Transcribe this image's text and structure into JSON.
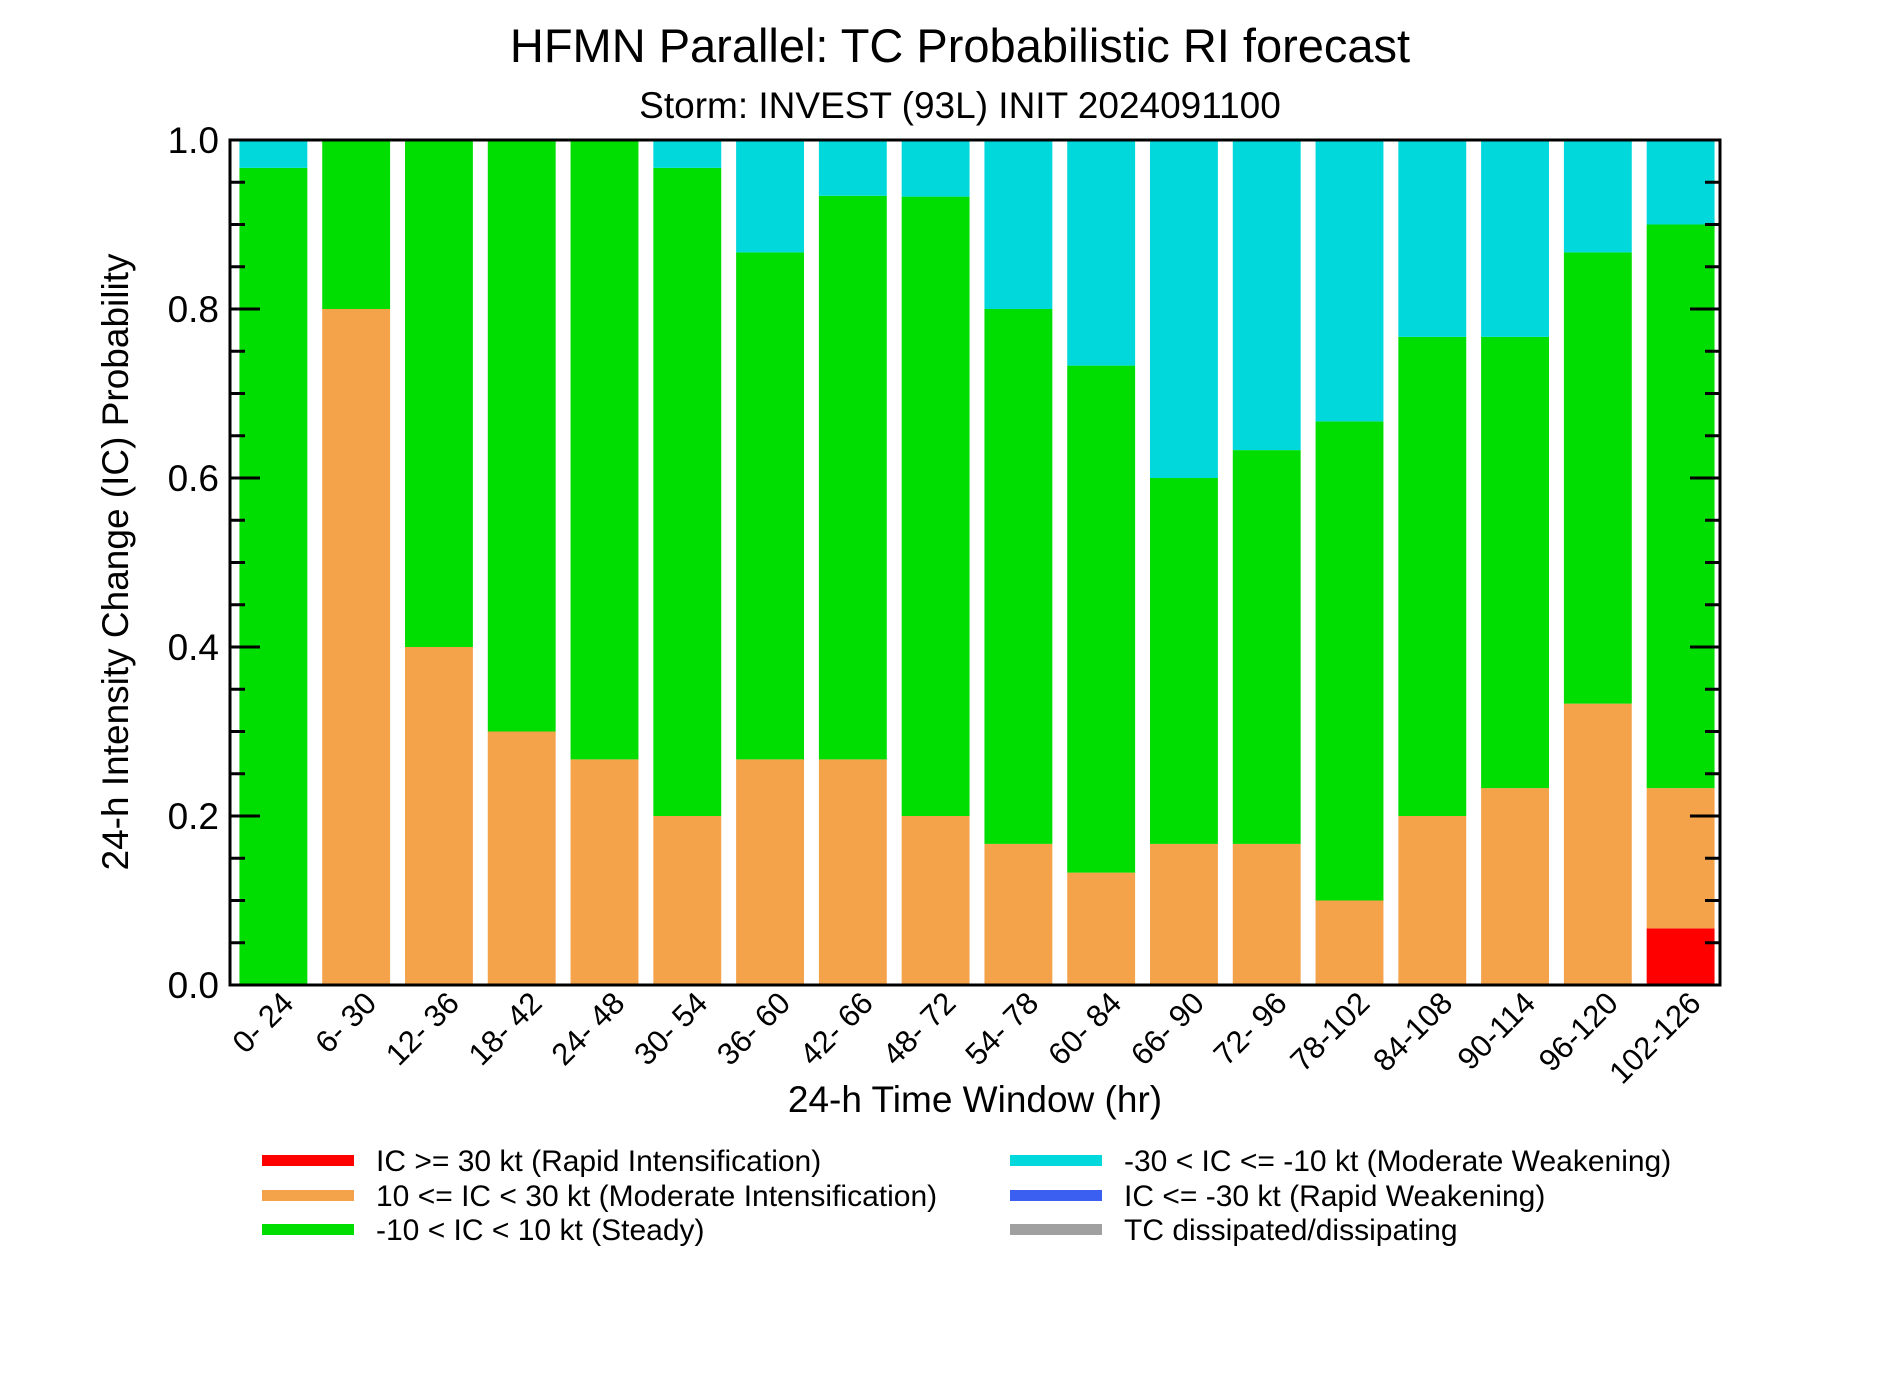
{
  "chart_data": {
    "type": "bar",
    "stacked": true,
    "title": "HFMN Parallel: TC Probabilistic RI forecast",
    "subtitle": "Storm: INVEST (93L) INIT 2024091100",
    "xlabel": "24-h Time Window (hr)",
    "ylabel": "24-h Intensity Change (IC) Probability",
    "ylim": [
      0,
      1
    ],
    "yticks": [
      "0.0",
      "0.2",
      "0.4",
      "0.6",
      "0.8",
      "1.0"
    ],
    "categories": [
      "0- 24",
      "6- 30",
      "12- 36",
      "18- 42",
      "24- 48",
      "30- 54",
      "36- 60",
      "42- 66",
      "48- 72",
      "54- 78",
      "60- 84",
      "66- 90",
      "72- 96",
      "78-102",
      "84-108",
      "90-114",
      "96-120",
      "102-126"
    ],
    "grid": false,
    "legend_position": "bottom",
    "series": [
      {
        "name": "IC >= 30 kt (Rapid Intensification)",
        "color": "#ff0000",
        "values": [
          0,
          0,
          0,
          0,
          0,
          0,
          0,
          0,
          0,
          0,
          0,
          0,
          0,
          0,
          0,
          0,
          0,
          0.067
        ]
      },
      {
        "name": "10 <= IC < 30 kt (Moderate Intensification)",
        "color": "#f4a34b",
        "values": [
          0,
          0.8,
          0.4,
          0.3,
          0.267,
          0.2,
          0.267,
          0.267,
          0.2,
          0.167,
          0.133,
          0.167,
          0.167,
          0.1,
          0.2,
          0.233,
          0.333,
          0.166
        ]
      },
      {
        "name": "-10 < IC < 10 kt (Steady)",
        "color": "#00dd00",
        "values": [
          0.967,
          0.2,
          0.6,
          0.7,
          0.733,
          0.767,
          0.6,
          0.667,
          0.733,
          0.633,
          0.6,
          0.433,
          0.466,
          0.567,
          0.567,
          0.534,
          0.534,
          0.667
        ]
      },
      {
        "name": "-30 < IC <= -10 kt (Moderate Weakening)",
        "color": "#00d8dc",
        "values": [
          0.033,
          0,
          0,
          0,
          0,
          0.033,
          0.133,
          0.066,
          0.067,
          0.2,
          0.267,
          0.4,
          0.367,
          0.333,
          0.233,
          0.233,
          0.133,
          0.1
        ]
      },
      {
        "name": "IC <= -30 kt (Rapid Weakening)",
        "color": "#3b5ff0",
        "values": [
          0,
          0,
          0,
          0,
          0,
          0,
          0,
          0,
          0,
          0,
          0,
          0,
          0,
          0,
          0,
          0,
          0,
          0
        ]
      },
      {
        "name": "TC dissipated/dissipating",
        "color": "#a0a0a0",
        "values": [
          0,
          0,
          0,
          0,
          0,
          0,
          0,
          0,
          0,
          0,
          0,
          0,
          0,
          0,
          0,
          0,
          0,
          0
        ]
      }
    ]
  }
}
